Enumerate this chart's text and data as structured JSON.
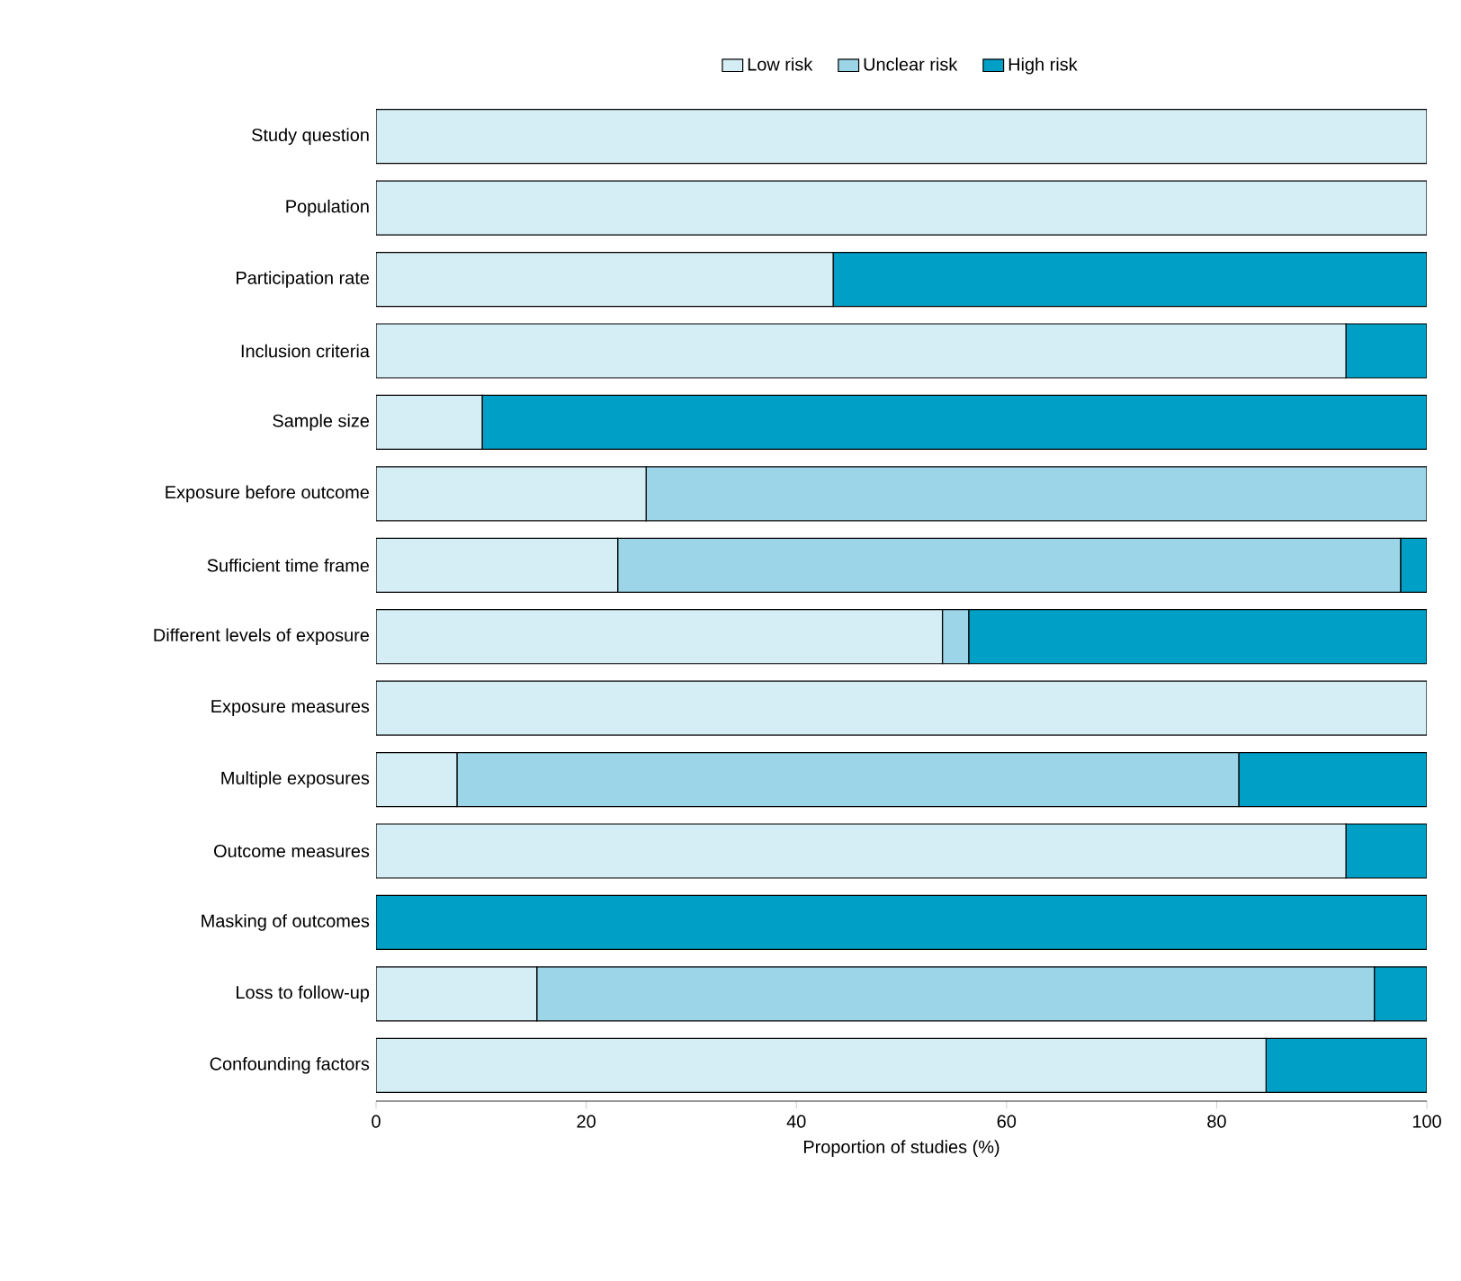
{
  "chart_data": {
    "type": "bar",
    "orientation": "horizontal",
    "stacked": true,
    "xlabel": "Proportion of studies (%)",
    "categories": [
      "Study question",
      "Population",
      "Participation rate",
      "Inclusion criteria",
      "Sample size",
      "Exposure before outcome",
      "Sufficient time frame",
      "Different levels of exposure",
      "Exposure measures",
      "Multiple exposures",
      "Outcome measures",
      "Masking of outcomes",
      "Loss to follow-up",
      "Confounding factors"
    ],
    "series": [
      {
        "name": "Low risk",
        "color": "#d5edf4",
        "values": [
          100,
          100,
          43.5,
          92.3,
          10.1,
          25.7,
          23.0,
          53.9,
          100,
          7.7,
          92.3,
          0,
          15.3,
          84.7
        ]
      },
      {
        "name": "Unclear risk",
        "color": "#9dd5e8",
        "values": [
          0,
          0,
          0,
          0,
          0,
          74.3,
          74.5,
          2.5,
          0,
          74.4,
          0,
          0,
          79.7,
          0
        ]
      },
      {
        "name": "High risk",
        "color": "#00a0c6",
        "values": [
          0,
          0,
          56.5,
          7.7,
          89.9,
          0,
          2.5,
          43.6,
          0,
          17.9,
          7.7,
          100,
          5.0,
          15.3
        ]
      }
    ],
    "xlim": [
      0,
      100
    ],
    "xticks": [
      0,
      20,
      40,
      60,
      80,
      100
    ],
    "grid": false,
    "legend": "top"
  }
}
